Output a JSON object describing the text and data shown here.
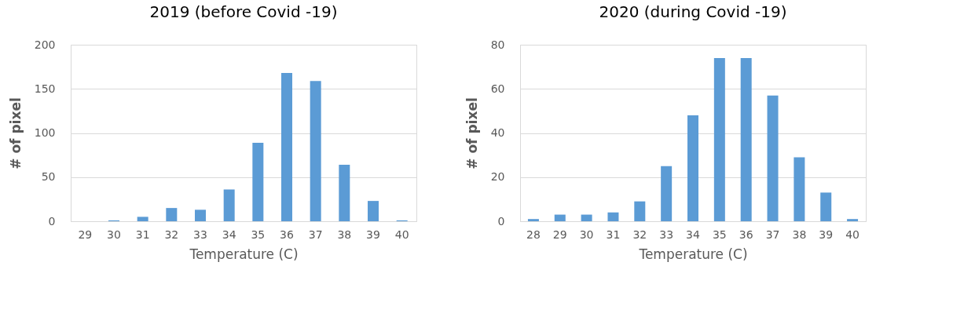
{
  "chart_data": [
    {
      "type": "bar",
      "title": "2019 (before Covid -19)",
      "xlabel": "Temperature (C)",
      "ylabel": "# of pixel",
      "categories": [
        "29",
        "30",
        "31",
        "32",
        "33",
        "34",
        "35",
        "36",
        "37",
        "38",
        "39",
        "40"
      ],
      "values": [
        0,
        1,
        5,
        15,
        13,
        36,
        89,
        168,
        159,
        64,
        23,
        1
      ],
      "color": "#5b9bd5",
      "ylim": [
        0,
        200
      ],
      "yticks": [
        0,
        50,
        100,
        150,
        200
      ],
      "grid": "y"
    },
    {
      "type": "bar",
      "title": "2020 (during Covid -19)",
      "xlabel": "Temperature (C)",
      "ylabel": "# of pixel",
      "categories": [
        "28",
        "29",
        "30",
        "31",
        "32",
        "33",
        "34",
        "35",
        "36",
        "37",
        "38",
        "39",
        "40"
      ],
      "values": [
        1,
        3,
        3,
        4,
        9,
        25,
        48,
        74,
        74,
        57,
        29,
        13,
        1
      ],
      "color": "#5b9bd5",
      "ylim": [
        0,
        80
      ],
      "yticks": [
        0,
        20,
        40,
        60,
        80
      ],
      "grid": "y"
    }
  ]
}
